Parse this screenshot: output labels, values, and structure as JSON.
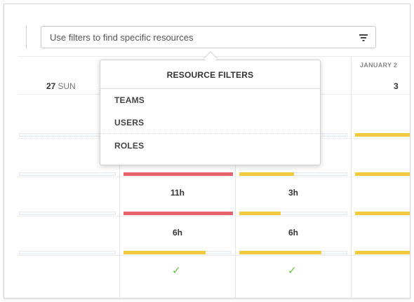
{
  "filter": {
    "placeholder": "Use filters to find specific resources",
    "icon": "filter-icon"
  },
  "calendar": {
    "month_label": "JANUARY 2",
    "days": [
      {
        "num": "27",
        "name": "SUN"
      },
      {
        "num": "3",
        "name": ""
      }
    ],
    "rows": [
      {
        "cells": [
          {
            "hours": "",
            "fill": 0,
            "color": ""
          },
          {
            "hours": "",
            "fill": 0,
            "color": ""
          },
          {
            "hours": "",
            "fill": 0,
            "color": ""
          },
          {
            "hours": "",
            "fill": 1,
            "color": "#f5c842"
          }
        ]
      },
      {
        "cells": [
          {
            "hours": "",
            "fill": 0,
            "color": ""
          },
          {
            "hours": "",
            "fill": 1,
            "color": "#e8646a"
          },
          {
            "hours": "",
            "fill": 0.5,
            "color": "#f5c842"
          },
          {
            "hours": "",
            "fill": 1,
            "color": "#f5c842"
          }
        ]
      },
      {
        "cells": [
          {
            "hours": "",
            "fill": 0,
            "color": ""
          },
          {
            "hours": "11h",
            "fill": 1,
            "color": "#e8646a"
          },
          {
            "hours": "3h",
            "fill": 0.38,
            "color": "#f5c842"
          },
          {
            "hours": "",
            "fill": 1,
            "color": "#f5c842"
          }
        ]
      },
      {
        "cells": [
          {
            "hours": "",
            "fill": 0,
            "color": ""
          },
          {
            "hours": "6h",
            "fill": 0.75,
            "color": "#f5c842"
          },
          {
            "hours": "6h",
            "fill": 0.75,
            "color": "#f5c842"
          },
          {
            "hours": "",
            "fill": 1,
            "color": "#f5c842"
          }
        ]
      }
    ],
    "checks": [
      "✓",
      "✓"
    ],
    "colors": {
      "overbooked": "#e8646a",
      "booked": "#f5c842",
      "ok": "#6cc04a"
    }
  },
  "popover": {
    "title": "RESOURCE FILTERS",
    "items": [
      {
        "label": "TEAMS"
      },
      {
        "label": "USERS"
      },
      {
        "label": "ROLES"
      }
    ]
  }
}
